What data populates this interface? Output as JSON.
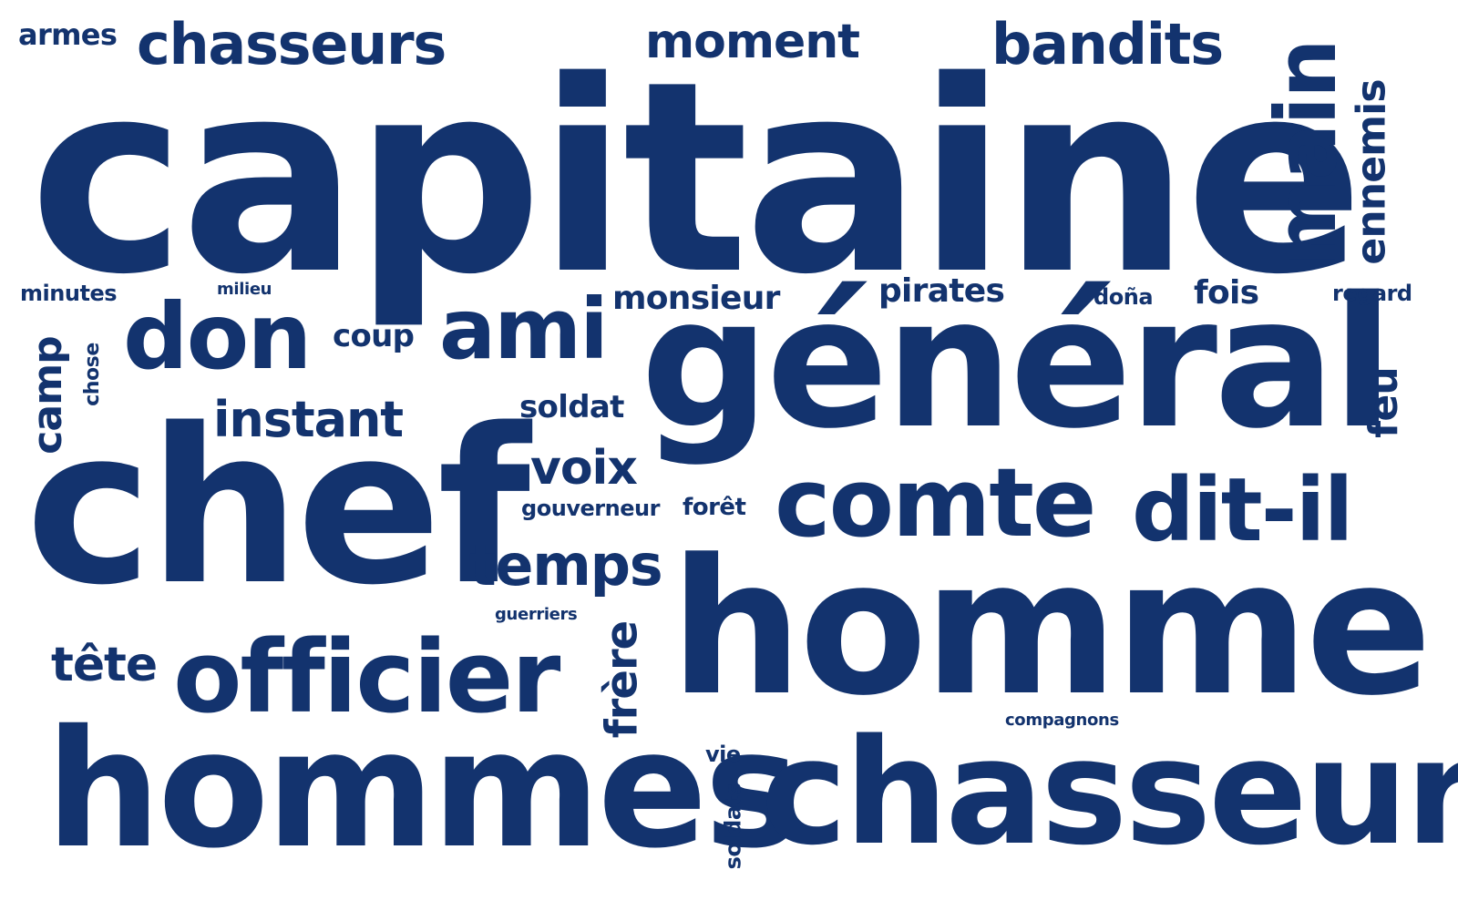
{
  "colors": {
    "text": "#13336e",
    "background": "#ffffff"
  },
  "words": {
    "capitaine": "capitaine",
    "general": "général",
    "chef": "chef",
    "homme": "homme",
    "hommes": "hommes",
    "chasseur": "chasseur",
    "officier": "officier",
    "comte": "comte",
    "dit_il": "dit-il",
    "don": "don",
    "ami": "ami",
    "main": "main",
    "chasseurs": "chasseurs",
    "bandits": "bandits",
    "moment": "moment",
    "temps": "temps",
    "instant": "instant",
    "voix": "voix",
    "tete": "tête",
    "frere": "frère",
    "ennemis": "ennemis",
    "camp": "camp",
    "feu": "feu",
    "monsieur": "monsieur",
    "pirates": "pirates",
    "fois": "fois",
    "armes": "armes",
    "coup": "coup",
    "soldat": "soldat",
    "minutes": "minutes",
    "regard": "regard",
    "dona": "doña",
    "milieu": "milieu",
    "chose": "chose",
    "gouverneur": "gouverneur",
    "foret": "forêt",
    "guerriers": "guerriers",
    "compagnons": "compagnons",
    "vie": "vie",
    "soldats": "soldats"
  }
}
